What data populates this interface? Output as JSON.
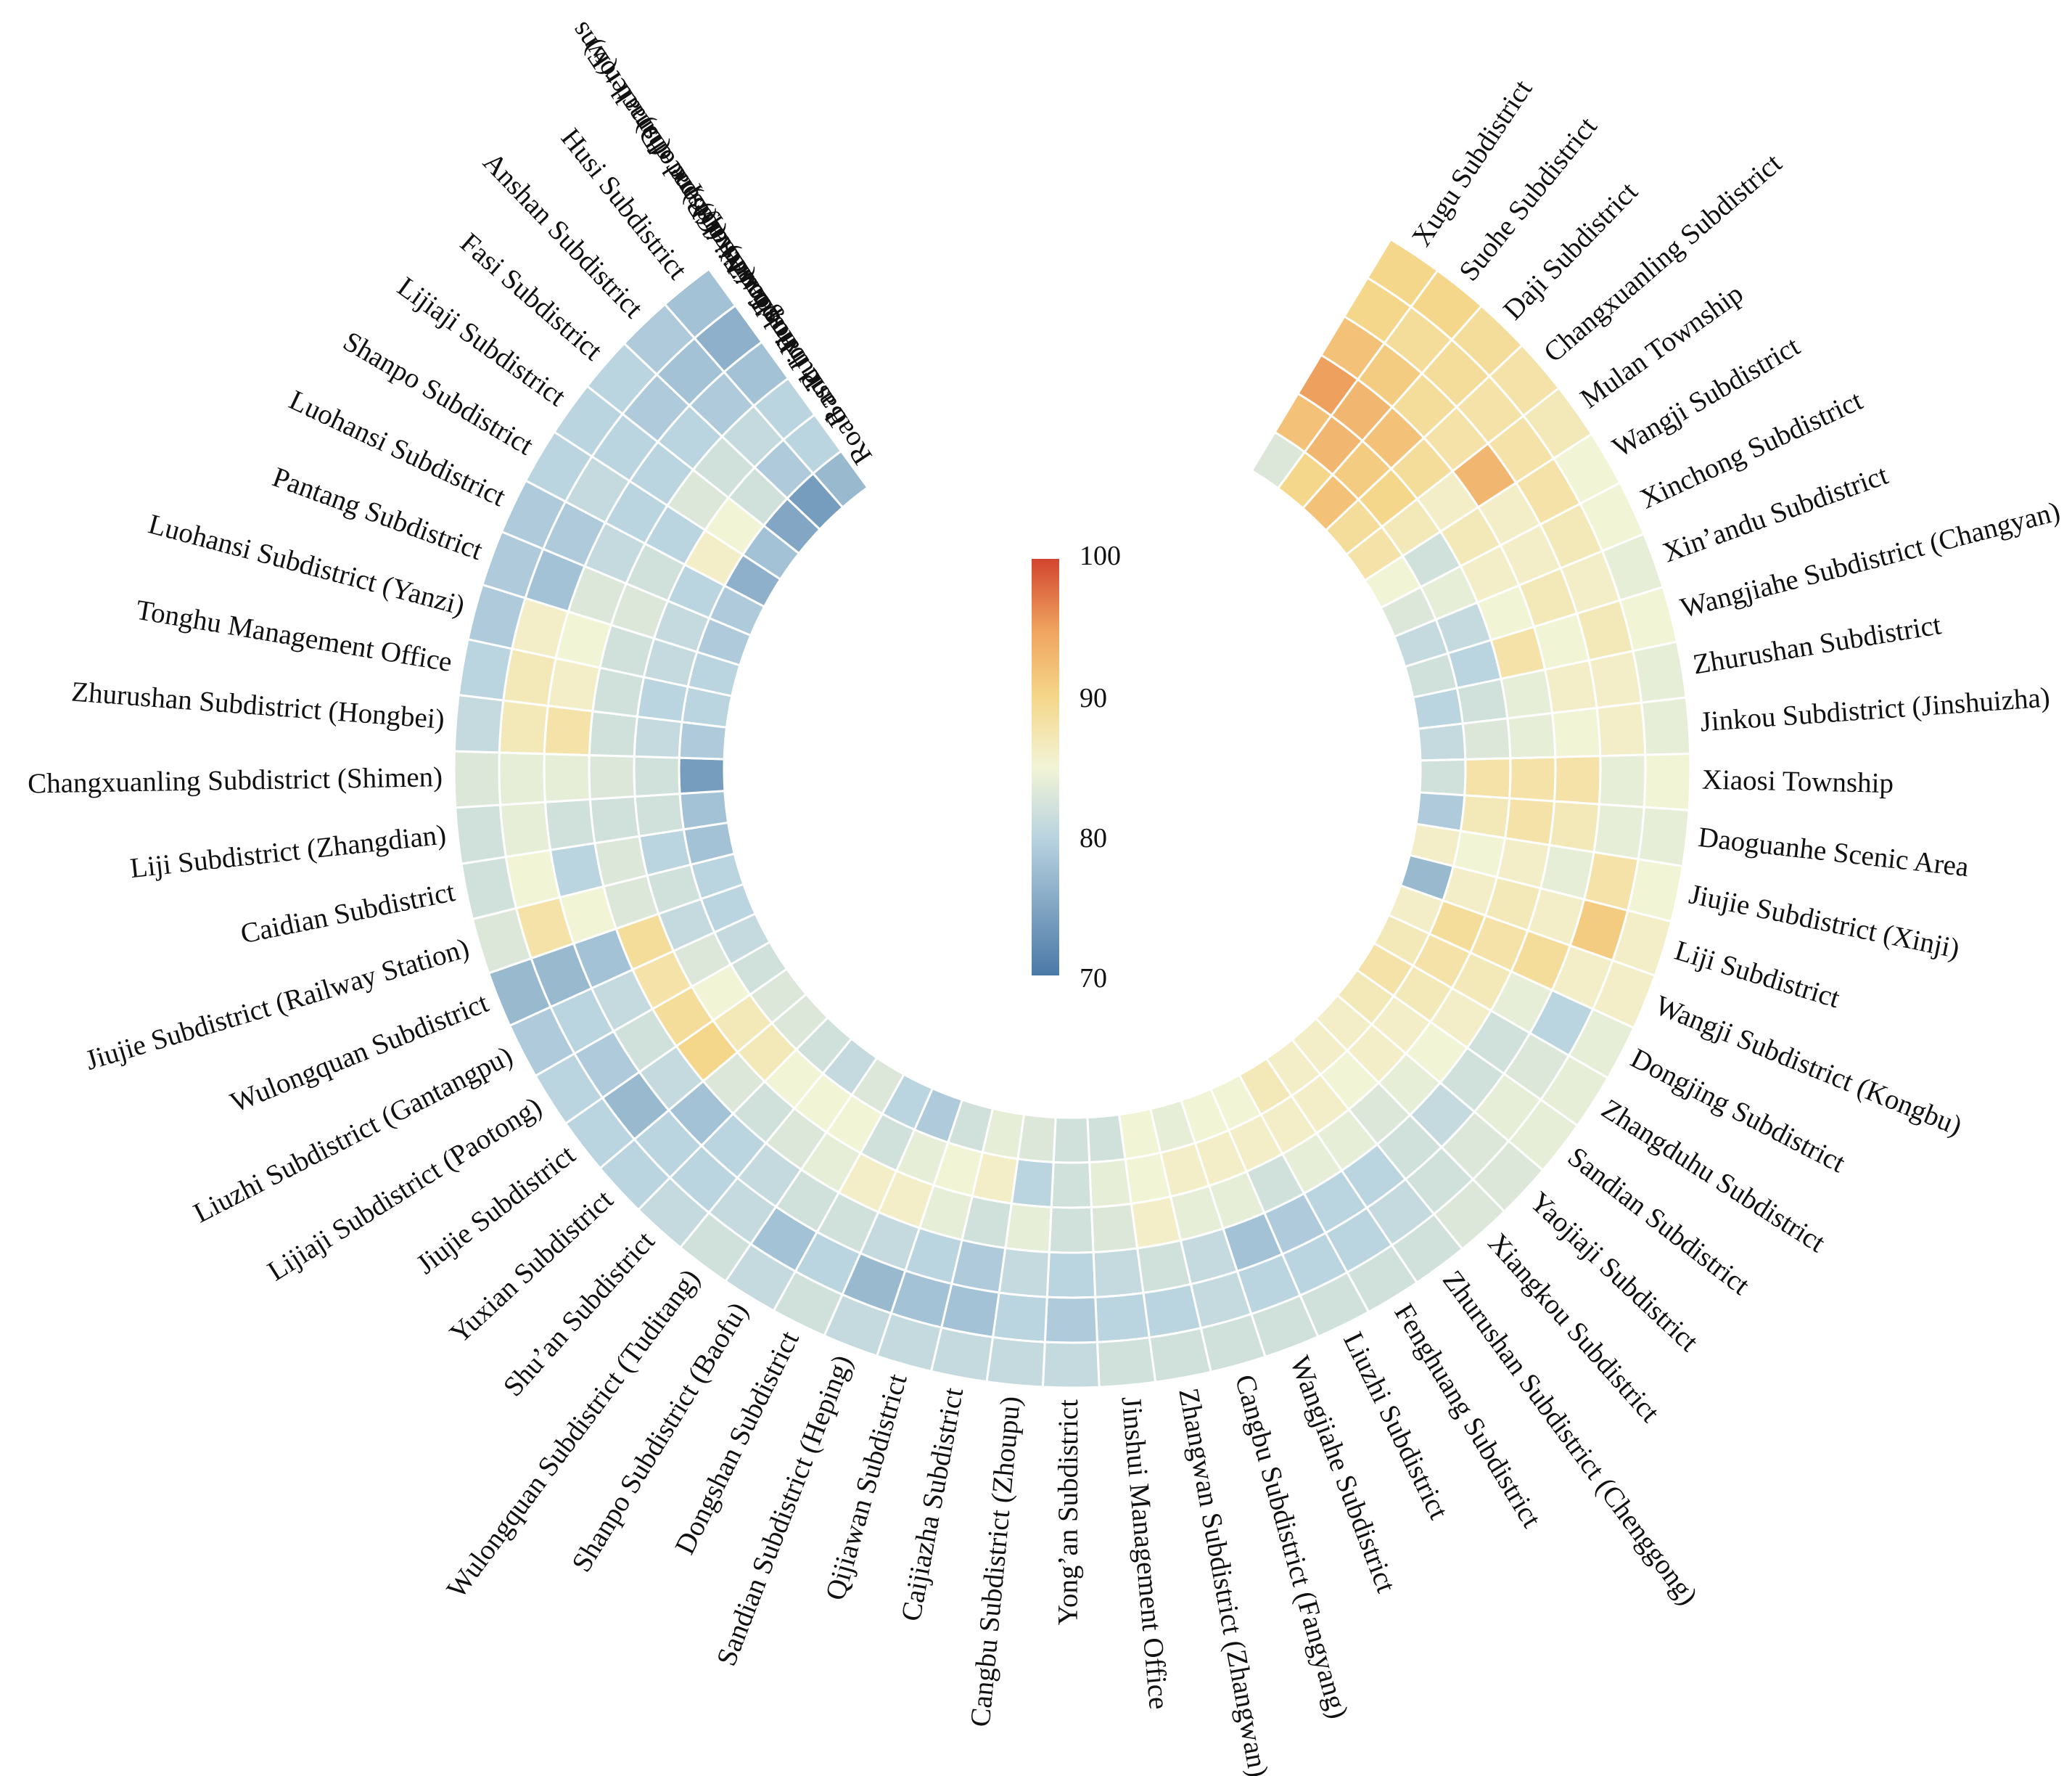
{
  "chart_data": {
    "type": "heatmap",
    "layout": "circular",
    "rings": [
      {
        "key": "A",
        "label": "Road and transport(A)"
      },
      {
        "key": "B",
        "label": "Basic living facilities(B)"
      },
      {
        "key": "C",
        "label": "Public services (C)"
      },
      {
        "key": "D",
        "label": "Public activity space(D)"
      },
      {
        "key": "E",
        "label": "Townscape and character(E)"
      },
      {
        "key": "T",
        "label": "Total score of small towns"
      }
    ],
    "colorbar": {
      "min": 70,
      "max": 100,
      "ticks": [
        "100",
        "90",
        "80",
        "70"
      ]
    },
    "colors": {
      "low": "#4b79a7",
      "mid": "#f2f4d6",
      "high": "#d2452f"
    },
    "towns": [
      {
        "name": "Xugu Subdistrict",
        "values": [
          83,
          92,
          95,
          92,
          90,
          90
        ]
      },
      {
        "name": "Suohe Subdistrict",
        "values": [
          90,
          93,
          93,
          91,
          89,
          90
        ]
      },
      {
        "name": "Daji Subdistrict",
        "values": [
          92,
          91,
          92,
          89,
          89,
          89
        ]
      },
      {
        "name": "Changxuanling Subdistrict",
        "values": [
          89,
          90,
          89,
          88,
          88,
          88
        ]
      },
      {
        "name": "Mulan Township",
        "values": [
          88,
          87,
          86,
          93,
          88,
          87
        ]
      },
      {
        "name": "Wangji Subdistrict",
        "values": [
          85,
          82,
          87,
          86,
          88,
          85
        ]
      },
      {
        "name": "Xinchong Subdistrict",
        "values": [
          83,
          84,
          86,
          86,
          87,
          85
        ]
      },
      {
        "name": "Xin’andu Subdistrict",
        "values": [
          81,
          81,
          85,
          87,
          86,
          84
        ]
      },
      {
        "name": "Wangjiahe Subdistrict (Changyan)",
        "values": [
          82,
          80,
          88,
          85,
          87,
          85
        ]
      },
      {
        "name": "Zhurushan Subdistrict",
        "values": [
          80,
          82,
          84,
          86,
          86,
          84
        ]
      },
      {
        "name": "Jinkou Subdistrict (Jinshuizha)",
        "values": [
          81,
          83,
          84,
          85,
          86,
          84
        ]
      },
      {
        "name": "Xiaosi Township",
        "values": [
          82,
          88,
          88,
          88,
          84,
          85
        ]
      },
      {
        "name": "Daoguanhe Scenic Area",
        "values": [
          79,
          87,
          88,
          87,
          84,
          84
        ]
      },
      {
        "name": "Jiujie Subdistrict (Xinji)",
        "values": [
          86,
          85,
          86,
          84,
          88,
          85
        ]
      },
      {
        "name": "Liji Subdistrict",
        "values": [
          77,
          86,
          87,
          86,
          91,
          86
        ]
      },
      {
        "name": "Wangji Subdistrict (Kongbu)",
        "values": [
          86,
          89,
          88,
          89,
          86,
          86
        ]
      },
      {
        "name": "Dongjing Subdistrict",
        "values": [
          87,
          88,
          87,
          84,
          80,
          84
        ]
      },
      {
        "name": "Zhangduhu Subdistrict",
        "values": [
          88,
          87,
          86,
          82,
          83,
          84
        ]
      },
      {
        "name": "Sandian Subdistrict",
        "values": [
          87,
          86,
          85,
          82,
          84,
          84
        ]
      },
      {
        "name": "Yaojiaji Subdistrict",
        "values": [
          86,
          86,
          84,
          81,
          83,
          83
        ]
      },
      {
        "name": "Xiangkou Subdistrict",
        "values": [
          86,
          85,
          83,
          82,
          82,
          83
        ]
      },
      {
        "name": "Zhurushan Subdistrict (Chenggong)",
        "values": [
          86,
          86,
          84,
          80,
          81,
          82
        ]
      },
      {
        "name": "Fenghuang Subdistrict",
        "values": [
          87,
          86,
          84,
          80,
          80,
          82
        ]
      },
      {
        "name": "Liuzhi Subdistrict",
        "values": [
          85,
          86,
          82,
          79,
          80,
          82
        ]
      },
      {
        "name": "Wangjiahe Subdistrict",
        "values": [
          85,
          86,
          84,
          78,
          80,
          82
        ]
      },
      {
        "name": "Cangbu Subdistrict (Fangyang)",
        "values": [
          84,
          86,
          84,
          81,
          81,
          82
        ]
      },
      {
        "name": "Zhangwan Subdistrict (Zhangwan)",
        "values": [
          85,
          85,
          86,
          82,
          80,
          82
        ]
      },
      {
        "name": "Jinshui Management Office",
        "values": [
          82,
          84,
          83,
          81,
          80,
          82
        ]
      },
      {
        "name": "Yong’an Subdistrict",
        "values": [
          82,
          82,
          82,
          80,
          79,
          81
        ]
      },
      {
        "name": "Cangbu Subdistrict (Zhoupu)",
        "values": [
          83,
          80,
          84,
          81,
          80,
          81
        ]
      },
      {
        "name": "Caijiazha Subdistrict",
        "values": [
          84,
          86,
          82,
          79,
          78,
          81
        ]
      },
      {
        "name": "Qijiawan Subdistrict",
        "values": [
          82,
          85,
          84,
          80,
          78,
          81
        ]
      },
      {
        "name": "Sandian Subdistrict (Heping)",
        "values": [
          79,
          84,
          86,
          81,
          77,
          81
        ]
      },
      {
        "name": "Dongshan Subdistrict",
        "values": [
          80,
          82,
          86,
          82,
          80,
          82
        ]
      },
      {
        "name": "Shanpo Subdistrict (Baofu)",
        "values": [
          83,
          85,
          84,
          82,
          78,
          81
        ]
      },
      {
        "name": "Wulongquan Subdistrict (Tuditang)",
        "values": [
          81,
          85,
          83,
          81,
          81,
          82
        ]
      },
      {
        "name": "Shu’an Subdistrict",
        "values": [
          82,
          85,
          82,
          80,
          80,
          81
        ]
      },
      {
        "name": "Yuxian Subdistrict",
        "values": [
          83,
          87,
          83,
          78,
          80,
          80
        ]
      },
      {
        "name": "Jiujie Subdistrict",
        "values": [
          83,
          87,
          90,
          81,
          77,
          80
        ]
      },
      {
        "name": "Lijiaji Subdistrict (Paotong)",
        "values": [
          82,
          85,
          89,
          82,
          79,
          80
        ]
      },
      {
        "name": "Liuzhi Subdistrict (Gantangpu)",
        "values": [
          81,
          83,
          88,
          81,
          80,
          79
        ]
      },
      {
        "name": "Wulongquan Subdistrict",
        "values": [
          80,
          81,
          89,
          78,
          77,
          77
        ]
      },
      {
        "name": "Jiujie Subdistrict (Railway Station)",
        "values": [
          80,
          82,
          83,
          85,
          88,
          83
        ]
      },
      {
        "name": "Caidian Subdistrict",
        "values": [
          78,
          80,
          83,
          80,
          85,
          82
        ]
      },
      {
        "name": "Liji Subdistrict (Zhangdian)",
        "values": [
          78,
          82,
          82,
          82,
          84,
          82
        ]
      },
      {
        "name": "Changxuanling Subdistrict (Shimen)",
        "values": [
          74,
          82,
          83,
          84,
          84,
          83
        ]
      },
      {
        "name": "Zhurushan Subdistrict (Hongbei)",
        "values": [
          79,
          81,
          82,
          88,
          87,
          81
        ]
      },
      {
        "name": "Tonghu Management Office",
        "values": [
          80,
          80,
          82,
          86,
          87,
          80
        ]
      },
      {
        "name": "Luohansi Subdistrict (Yanzi)",
        "values": [
          80,
          81,
          82,
          85,
          86,
          79
        ]
      },
      {
        "name": "Pantang Subdistrict",
        "values": [
          79,
          81,
          83,
          83,
          78,
          79
        ]
      },
      {
        "name": "Luohansi Subdistrict",
        "values": [
          79,
          80,
          82,
          81,
          79,
          79
        ]
      },
      {
        "name": "Shanpo Subdistrict",
        "values": [
          76,
          86,
          80,
          80,
          81,
          80
        ]
      },
      {
        "name": "Lijiaji Subdistrict",
        "values": [
          78,
          85,
          83,
          80,
          80,
          80
        ]
      },
      {
        "name": "Fasi Subdistrict",
        "values": [
          75,
          82,
          82,
          80,
          79,
          80
        ]
      },
      {
        "name": "Anshan Subdistrict",
        "values": [
          74,
          79,
          81,
          79,
          78,
          79
        ]
      },
      {
        "name": "Husi Subdistrict",
        "values": [
          77,
          80,
          80,
          78,
          76,
          78
        ]
      }
    ]
  }
}
